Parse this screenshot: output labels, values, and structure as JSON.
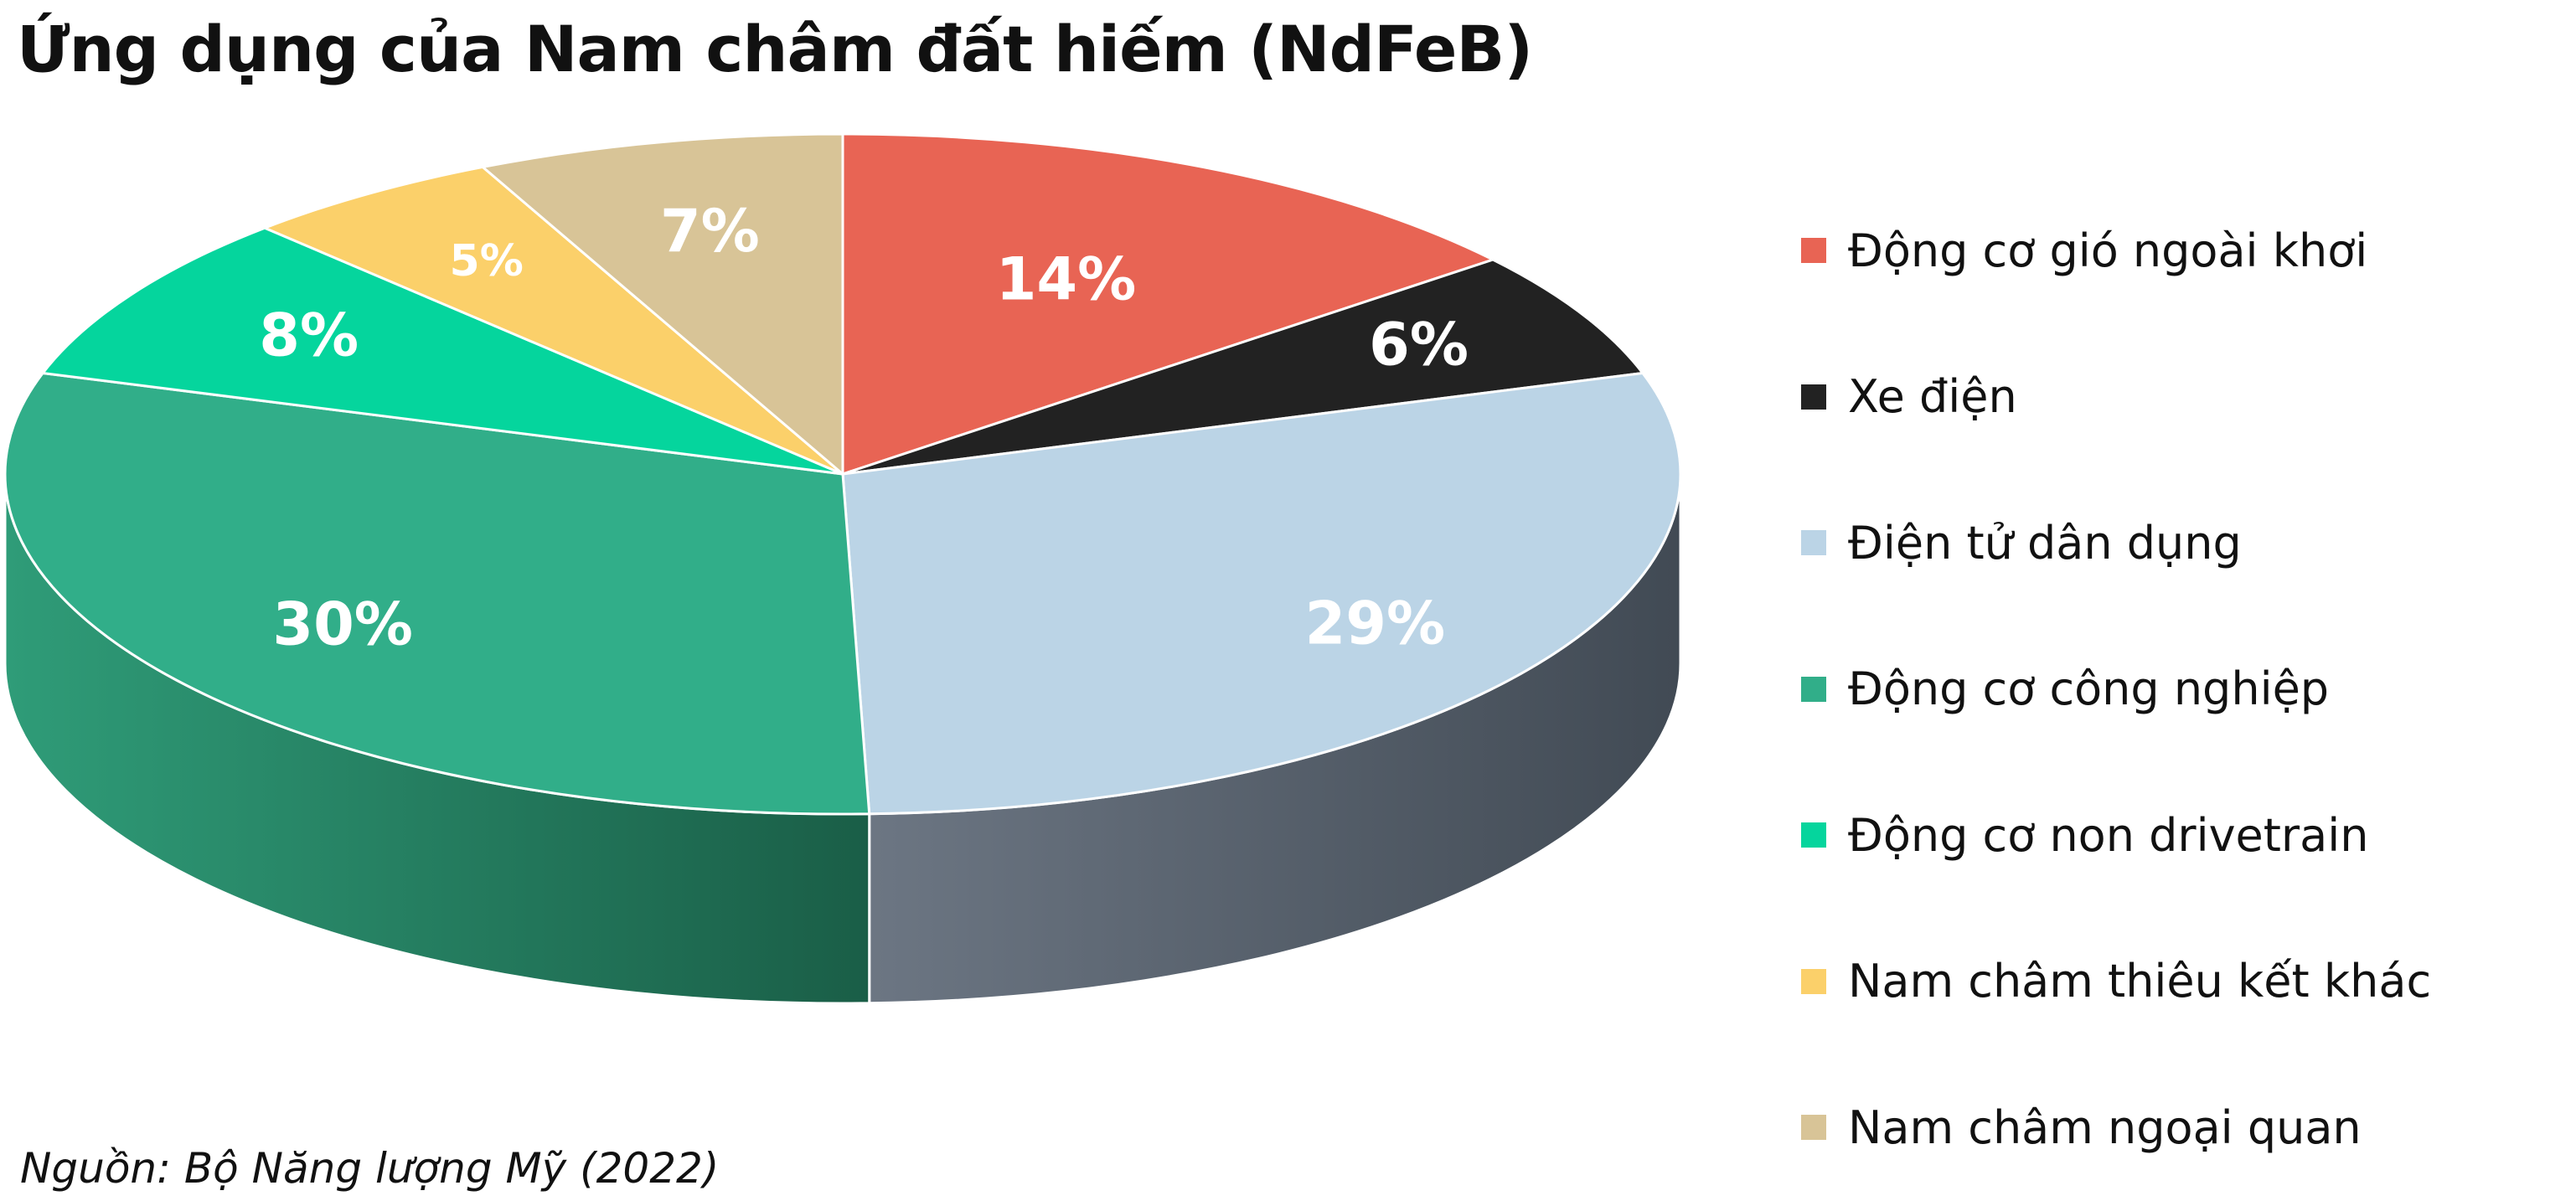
{
  "title": "Ứng dụng của Nam châm đất hiếm (NdFeB)",
  "source": "Nguồn: Bộ Năng lượng Mỹ (2022)",
  "chart_data": {
    "type": "pie",
    "title": "Ứng dụng của Nam châm đất hiếm (NdFeB)",
    "style": "3d",
    "legend_position": "right",
    "slices": [
      {
        "label": "Động cơ gió ngoài khơi",
        "value": 14,
        "display": "14%",
        "color": "#E86454",
        "side_color": "#B84A3D"
      },
      {
        "label": "Xe điện",
        "value": 6,
        "display": "6%",
        "color": "#222222",
        "side_color": "#1A1A1A"
      },
      {
        "label": "Điện tử dân dụng",
        "value": 29,
        "display": "29%",
        "color": "#BBD4E6",
        "side_color": "#4C5560"
      },
      {
        "label": "Động cơ công nghiệp",
        "value": 30,
        "display": "30%",
        "color": "#31AE89",
        "side_color": "#22815F"
      },
      {
        "label": "Động cơ non drivetrain",
        "value": 8,
        "display": "8%",
        "color": "#05D59D",
        "side_color": "#03A277"
      },
      {
        "label": "Nam châm thiêu kết khác",
        "value": 5,
        "display": "5%",
        "color": "#FBD06A",
        "side_color": "#C9A553"
      },
      {
        "label": "Nam châm ngoại quan",
        "value": 7,
        "display": "7%",
        "color": "#D8C497",
        "side_color": "#A89872"
      }
    ]
  }
}
